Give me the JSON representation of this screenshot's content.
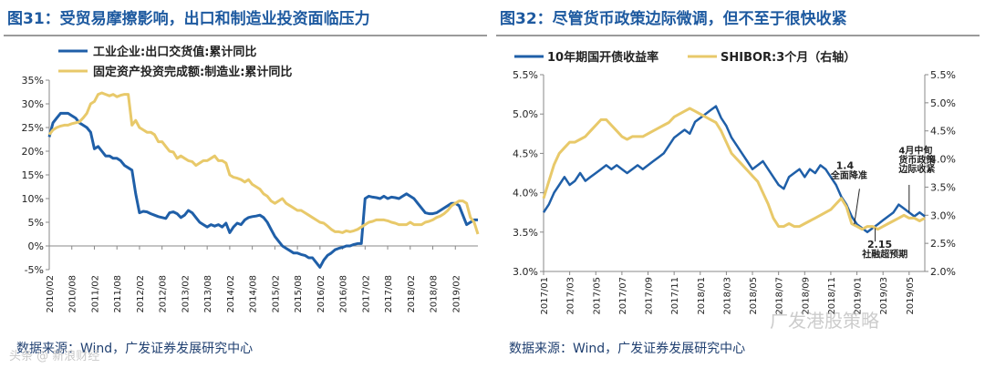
{
  "left": {
    "title": "图31：受贸易摩擦影响，出口和制造业投资面临压力",
    "source": "数据来源：Wind，广发证券发展研究中心",
    "watermark": "头条 @ 新浪财经"
  },
  "right": {
    "title": "图32：尽管货币政策边际微调，但不至于很快收紧",
    "source": "数据来源：Wind，广发证券发展研究中心",
    "watermark": "广发港股策略"
  },
  "chart_data": [
    {
      "type": "line",
      "title": "受贸易摩擦影响，出口和制造业投资面临压力",
      "xlabel": "",
      "ylabel": "",
      "ylim": [
        -0.05,
        0.35
      ],
      "y_ticks": [
        -0.05,
        0,
        0.05,
        0.1,
        0.15,
        0.2,
        0.25,
        0.3,
        0.35
      ],
      "y_tick_labels": [
        "-5%",
        "0%",
        "5%",
        "10%",
        "15%",
        "20%",
        "25%",
        "30%",
        "35%"
      ],
      "x_tick_labels": [
        "2010/02",
        "2010/08",
        "2011/02",
        "2011/08",
        "2012/02",
        "2012/08",
        "2013/02",
        "2013/08",
        "2014/02",
        "2014/08",
        "2015/02",
        "2015/08",
        "2016/02",
        "2016/08",
        "2017/02",
        "2017/08",
        "2018/02",
        "2018/08",
        "2019/02"
      ],
      "legend_position": "top-left",
      "series": [
        {
          "name": "工业企业:出口交货值:累计同比",
          "color": "#1f5fa8",
          "x": [
            0,
            1,
            2,
            3,
            4,
            5,
            6,
            7,
            8,
            9,
            10,
            11,
            12,
            13,
            14,
            15,
            16,
            17,
            18,
            19,
            20,
            21,
            22,
            23,
            24,
            25,
            26,
            27,
            28,
            29,
            30,
            31,
            32,
            33,
            34,
            35,
            36,
            37,
            38,
            39,
            40,
            41,
            42,
            43,
            44,
            45,
            46,
            47,
            48,
            49,
            50,
            51,
            52,
            53,
            54,
            55,
            56,
            57,
            58,
            59,
            60,
            61,
            62,
            63,
            64,
            65,
            66,
            67,
            68,
            69,
            70,
            71,
            72,
            73,
            74,
            75,
            76,
            77,
            78,
            79,
            80,
            81,
            82,
            83,
            84,
            85,
            86,
            87,
            88,
            89,
            90,
            91,
            92,
            93,
            94,
            95,
            96,
            97,
            98,
            99,
            100,
            101,
            102,
            103,
            104,
            105,
            106,
            107,
            108,
            109,
            110,
            111,
            112,
            113,
            114
          ],
          "values": [
            0.23,
            0.26,
            0.27,
            0.28,
            0.28,
            0.28,
            0.275,
            0.27,
            0.26,
            0.255,
            0.25,
            0.24,
            0.205,
            0.21,
            0.2,
            0.19,
            0.19,
            0.185,
            0.185,
            0.18,
            0.17,
            0.165,
            0.16,
            0.11,
            0.07,
            0.073,
            0.072,
            0.068,
            0.065,
            0.062,
            0.06,
            0.058,
            0.07,
            0.072,
            0.068,
            0.06,
            0.065,
            0.075,
            0.07,
            0.06,
            0.05,
            0.045,
            0.04,
            0.045,
            0.042,
            0.045,
            0.04,
            0.048,
            0.028,
            0.04,
            0.048,
            0.045,
            0.055,
            0.06,
            0.062,
            0.063,
            0.065,
            0.06,
            0.05,
            0.035,
            0.02,
            0.01,
            0.0,
            -0.005,
            -0.01,
            -0.015,
            -0.015,
            -0.018,
            -0.02,
            -0.025,
            -0.025,
            -0.035,
            -0.045,
            -0.03,
            -0.02,
            -0.015,
            -0.008,
            -0.005,
            -0.003,
            0.0,
            0.0,
            0.003,
            0.005,
            0.005,
            0.1,
            0.105,
            0.103,
            0.102,
            0.1,
            0.105,
            0.1,
            0.103,
            0.102,
            0.1,
            0.105,
            0.11,
            0.105,
            0.1,
            0.09,
            0.08,
            0.07,
            0.068,
            0.068,
            0.07,
            0.075,
            0.08,
            0.085,
            0.09,
            0.09,
            0.085,
            0.065,
            0.045,
            0.05,
            0.055,
            0.055
          ]
        },
        {
          "name": "固定资产投资完成额:制造业:累计同比",
          "color": "#e8c96a",
          "x": [
            0,
            1,
            2,
            3,
            4,
            5,
            6,
            7,
            8,
            9,
            10,
            11,
            12,
            13,
            14,
            15,
            16,
            17,
            18,
            19,
            20,
            21,
            22,
            23,
            24,
            25,
            26,
            27,
            28,
            29,
            30,
            31,
            32,
            33,
            34,
            35,
            36,
            37,
            38,
            39,
            40,
            41,
            42,
            43,
            44,
            45,
            46,
            47,
            48,
            49,
            50,
            51,
            52,
            53,
            54,
            55,
            56,
            57,
            58,
            59,
            60,
            61,
            62,
            63,
            64,
            65,
            66,
            67,
            68,
            69,
            70,
            71,
            72,
            73,
            74,
            75,
            76,
            77,
            78,
            79,
            80,
            81,
            82,
            83,
            84,
            85,
            86,
            87,
            88,
            89,
            90,
            91,
            92,
            93,
            94,
            95,
            96,
            97,
            98,
            99,
            100,
            101,
            102,
            103,
            104,
            105,
            106,
            107,
            108,
            109,
            110,
            111,
            112,
            113,
            114
          ],
          "values": [
            0.235,
            0.245,
            0.25,
            0.253,
            0.255,
            0.255,
            0.258,
            0.26,
            0.262,
            0.27,
            0.28,
            0.3,
            0.305,
            0.32,
            0.323,
            0.32,
            0.317,
            0.32,
            0.315,
            0.318,
            0.32,
            0.32,
            0.255,
            0.265,
            0.25,
            0.245,
            0.24,
            0.24,
            0.235,
            0.22,
            0.22,
            0.21,
            0.2,
            0.198,
            0.185,
            0.19,
            0.185,
            0.18,
            0.178,
            0.17,
            0.175,
            0.18,
            0.18,
            0.185,
            0.19,
            0.18,
            0.18,
            0.175,
            0.15,
            0.145,
            0.143,
            0.14,
            0.135,
            0.14,
            0.13,
            0.125,
            0.12,
            0.11,
            0.105,
            0.095,
            0.09,
            0.095,
            0.1,
            0.09,
            0.085,
            0.08,
            0.075,
            0.075,
            0.07,
            0.065,
            0.06,
            0.055,
            0.05,
            0.048,
            0.042,
            0.035,
            0.03,
            0.03,
            0.028,
            0.032,
            0.03,
            0.032,
            0.035,
            0.04,
            0.045,
            0.05,
            0.052,
            0.055,
            0.055,
            0.055,
            0.053,
            0.05,
            0.048,
            0.045,
            0.045,
            0.045,
            0.05,
            0.045,
            0.045,
            0.045,
            0.05,
            0.052,
            0.055,
            0.06,
            0.063,
            0.068,
            0.075,
            0.085,
            0.09,
            0.095,
            0.095,
            0.09,
            0.06,
            0.05,
            0.025
          ]
        }
      ]
    },
    {
      "type": "line",
      "title": "尽管货币政策边际微调，但不至于很快收紧",
      "xlabel": "",
      "ylabel": "",
      "ylim": [
        3.0,
        5.5
      ],
      "y_ticks": [
        3.0,
        3.5,
        4.0,
        4.5,
        5.0,
        5.5
      ],
      "y_tick_labels": [
        "3.0%",
        "3.5%",
        "4.0%",
        "4.5%",
        "5.0%",
        "5.5%"
      ],
      "y2lim": [
        2.0,
        5.5
      ],
      "y2_ticks": [
        2.0,
        2.5,
        3.0,
        3.5,
        4.0,
        4.5,
        5.0,
        5.5
      ],
      "y2_tick_labels": [
        "2.0%",
        "2.5%",
        "3.0%",
        "3.5%",
        "4.0%",
        "4.5%",
        "5.0%",
        "5.5%"
      ],
      "x_tick_labels": [
        "2017/01",
        "2017/03",
        "2017/05",
        "2017/07",
        "2017/09",
        "2017/11",
        "2018/01",
        "2018/03",
        "2018/05",
        "2018/07",
        "2018/09",
        "2018/11",
        "2019/01",
        "2019/03",
        "2019/05"
      ],
      "legend_position": "top",
      "series": [
        {
          "name": "10年期国开债收益率",
          "axis": "left",
          "color": "#1f5fa8",
          "x": [
            0,
            0.2,
            0.4,
            0.6,
            0.8,
            1.0,
            1.2,
            1.4,
            1.6,
            1.8,
            2.0,
            2.2,
            2.4,
            2.6,
            2.8,
            3.0,
            3.2,
            3.4,
            3.6,
            3.8,
            4.0,
            4.2,
            4.4,
            4.6,
            4.8,
            5.0,
            5.2,
            5.4,
            5.6,
            5.8,
            6.0,
            6.2,
            6.4,
            6.6,
            6.8,
            7.0,
            7.2,
            7.4,
            7.6,
            7.8,
            8.0,
            8.2,
            8.4,
            8.6,
            8.8,
            9.0,
            9.2,
            9.4,
            9.6,
            9.8,
            10.0,
            10.2,
            10.4,
            10.6,
            10.8,
            11.0,
            11.2,
            11.4,
            11.6,
            11.8,
            12.0,
            12.2,
            12.4,
            12.6,
            12.8,
            13.0,
            13.2,
            13.4,
            13.6,
            13.8,
            14.0,
            14.2,
            14.4,
            14.6
          ],
          "values": [
            3.75,
            3.85,
            4.0,
            4.1,
            4.2,
            4.1,
            4.15,
            4.25,
            4.15,
            4.2,
            4.25,
            4.3,
            4.35,
            4.3,
            4.35,
            4.3,
            4.25,
            4.3,
            4.35,
            4.3,
            4.35,
            4.4,
            4.45,
            4.5,
            4.6,
            4.7,
            4.75,
            4.8,
            4.75,
            4.9,
            4.95,
            5.0,
            5.05,
            5.1,
            4.95,
            4.85,
            4.7,
            4.6,
            4.5,
            4.4,
            4.3,
            4.35,
            4.4,
            4.3,
            4.2,
            4.1,
            4.05,
            4.2,
            4.25,
            4.3,
            4.2,
            4.3,
            4.25,
            4.35,
            4.3,
            4.2,
            4.1,
            3.95,
            3.85,
            3.7,
            3.6,
            3.55,
            3.5,
            3.55,
            3.6,
            3.65,
            3.7,
            3.75,
            3.85,
            3.8,
            3.75,
            3.7,
            3.75,
            3.7
          ]
        },
        {
          "name": "SHIBOR:3个月（右轴）",
          "axis": "right",
          "color": "#e8c96a",
          "x": [
            0,
            0.2,
            0.4,
            0.6,
            0.8,
            1.0,
            1.2,
            1.4,
            1.6,
            1.8,
            2.0,
            2.2,
            2.4,
            2.6,
            2.8,
            3.0,
            3.2,
            3.4,
            3.6,
            3.8,
            4.0,
            4.2,
            4.4,
            4.6,
            4.8,
            5.0,
            5.2,
            5.4,
            5.6,
            5.8,
            6.0,
            6.2,
            6.4,
            6.6,
            6.8,
            7.0,
            7.2,
            7.4,
            7.6,
            7.8,
            8.0,
            8.2,
            8.4,
            8.6,
            8.8,
            9.0,
            9.2,
            9.4,
            9.6,
            9.8,
            10.0,
            10.2,
            10.4,
            10.6,
            10.8,
            11.0,
            11.2,
            11.4,
            11.6,
            11.8,
            12.0,
            12.2,
            12.4,
            12.6,
            12.8,
            13.0,
            13.2,
            13.4,
            13.6,
            13.8,
            14.0,
            14.2,
            14.4,
            14.6
          ],
          "values": [
            3.3,
            3.6,
            3.9,
            4.1,
            4.2,
            4.3,
            4.3,
            4.35,
            4.4,
            4.5,
            4.6,
            4.7,
            4.7,
            4.6,
            4.5,
            4.4,
            4.35,
            4.4,
            4.4,
            4.4,
            4.45,
            4.5,
            4.55,
            4.6,
            4.65,
            4.75,
            4.8,
            4.85,
            4.9,
            4.85,
            4.8,
            4.75,
            4.7,
            4.65,
            4.5,
            4.3,
            4.1,
            4.0,
            3.9,
            3.8,
            3.7,
            3.6,
            3.4,
            3.2,
            2.95,
            2.8,
            2.8,
            2.85,
            2.8,
            2.8,
            2.85,
            2.9,
            2.95,
            3.0,
            3.05,
            3.1,
            3.2,
            3.3,
            3.15,
            2.85,
            2.8,
            2.75,
            2.8,
            2.8,
            2.75,
            2.8,
            2.85,
            2.9,
            2.95,
            3.0,
            2.95,
            2.95,
            2.9,
            2.95
          ]
        }
      ],
      "annotations": [
        {
          "label": "1.4",
          "sub": "全面降准"
        },
        {
          "label": "4月中旬",
          "sub": "货币政策边际收紧"
        },
        {
          "label": "2.15",
          "sub": "社融超预期"
        }
      ]
    }
  ]
}
